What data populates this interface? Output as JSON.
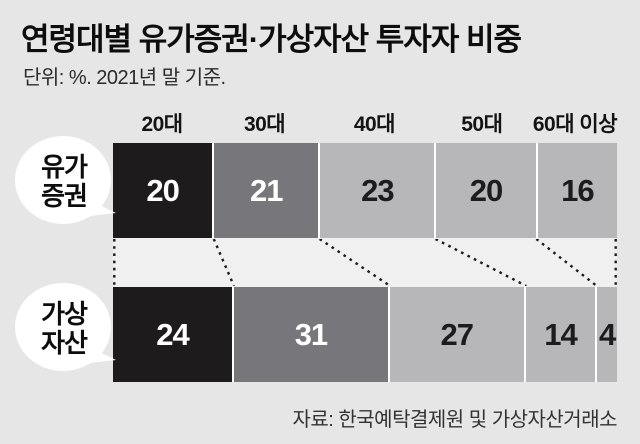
{
  "title": "연령대별 유가증권·가상자산 투자자 비중",
  "subtitle": "단위: %. 2021년 말 기준.",
  "source": "자료: 한국예탁결제원 및 가상자산거래소",
  "row_labels": {
    "securities": [
      "유가",
      "증권"
    ],
    "virtual": [
      "가상",
      "자산"
    ]
  },
  "chart_data": {
    "type": "bar",
    "variant": "horizontal-100pct-stacked, two rows with dashed connectors",
    "unit": "%",
    "categories": [
      "20대",
      "30대",
      "40대",
      "50대",
      "60대 이상"
    ],
    "series": [
      {
        "name": "유가증권",
        "values": [
          20,
          21,
          23,
          20,
          16
        ]
      },
      {
        "name": "가상자산",
        "values": [
          24,
          31,
          27,
          14,
          4
        ]
      }
    ],
    "segment_colors": [
      "#1e1b1c",
      "#77777b",
      "#b7b7ba",
      "#b7b7ba",
      "#b7b7ba"
    ],
    "value_text_colors": [
      "#ffffff",
      "#ffffff",
      "#1c1c1c",
      "#1c1c1c",
      "#1c1c1c"
    ],
    "legend_position": "left-speech-bubbles",
    "grid": false
  },
  "colors": {
    "background": "#e6e6e7",
    "band": "#f0f0f1",
    "separator": "#ffffff",
    "dash": "#1a1a1a",
    "bubble_fill": "#ffffff"
  }
}
